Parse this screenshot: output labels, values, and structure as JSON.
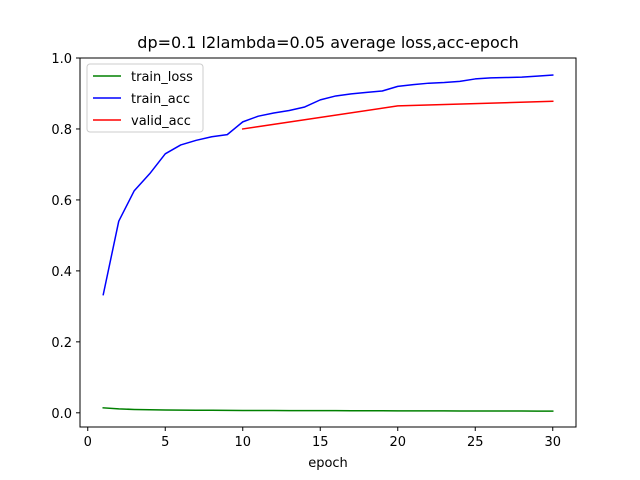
{
  "chart_data": {
    "type": "line",
    "title": "dp=0.1 l2lambda=0.05 average loss,acc-epoch",
    "xlabel": "epoch",
    "ylabel": "",
    "xlim": [
      -0.5,
      31.5
    ],
    "ylim": [
      -0.04,
      1.0
    ],
    "xticks": [
      0,
      5,
      10,
      15,
      20,
      25,
      30
    ],
    "yticks": [
      0.0,
      0.2,
      0.4,
      0.6,
      0.8,
      1.0
    ],
    "xtick_labels": [
      "0",
      "5",
      "10",
      "15",
      "20",
      "25",
      "30"
    ],
    "ytick_labels": [
      "0.0",
      "0.2",
      "0.4",
      "0.6",
      "0.8",
      "1.0"
    ],
    "grid": false,
    "legend_position": "top-left",
    "series": [
      {
        "name": "train_loss",
        "color": "#008000",
        "x": [
          1,
          2,
          3,
          4,
          5,
          6,
          7,
          8,
          9,
          10,
          11,
          12,
          13,
          14,
          15,
          16,
          17,
          18,
          19,
          20,
          21,
          22,
          23,
          24,
          25,
          26,
          27,
          28,
          29,
          30
        ],
        "y": [
          0.014,
          0.011,
          0.0095,
          0.0088,
          0.008,
          0.0076,
          0.0073,
          0.0071,
          0.007,
          0.0066,
          0.0065,
          0.0064,
          0.0063,
          0.0062,
          0.0061,
          0.006,
          0.0059,
          0.0058,
          0.0057,
          0.0056,
          0.0055,
          0.0054,
          0.0053,
          0.0052,
          0.0052,
          0.0051,
          0.005,
          0.005,
          0.0049,
          0.0048
        ]
      },
      {
        "name": "train_acc",
        "color": "#0000ff",
        "x": [
          1,
          2,
          3,
          4,
          5,
          6,
          7,
          8,
          9,
          10,
          11,
          12,
          13,
          14,
          15,
          16,
          17,
          18,
          19,
          20,
          21,
          22,
          23,
          24,
          25,
          26,
          27,
          28,
          29,
          30
        ],
        "y": [
          0.333,
          0.54,
          0.626,
          0.674,
          0.73,
          0.755,
          0.768,
          0.778,
          0.784,
          0.82,
          0.836,
          0.845,
          0.852,
          0.862,
          0.882,
          0.893,
          0.899,
          0.903,
          0.907,
          0.92,
          0.925,
          0.929,
          0.931,
          0.934,
          0.941,
          0.944,
          0.945,
          0.946,
          0.949,
          0.952
        ]
      },
      {
        "name": "valid_acc",
        "color": "#ff0000",
        "x": [
          10,
          20,
          30
        ],
        "y": [
          0.8,
          0.865,
          0.878
        ]
      }
    ]
  }
}
